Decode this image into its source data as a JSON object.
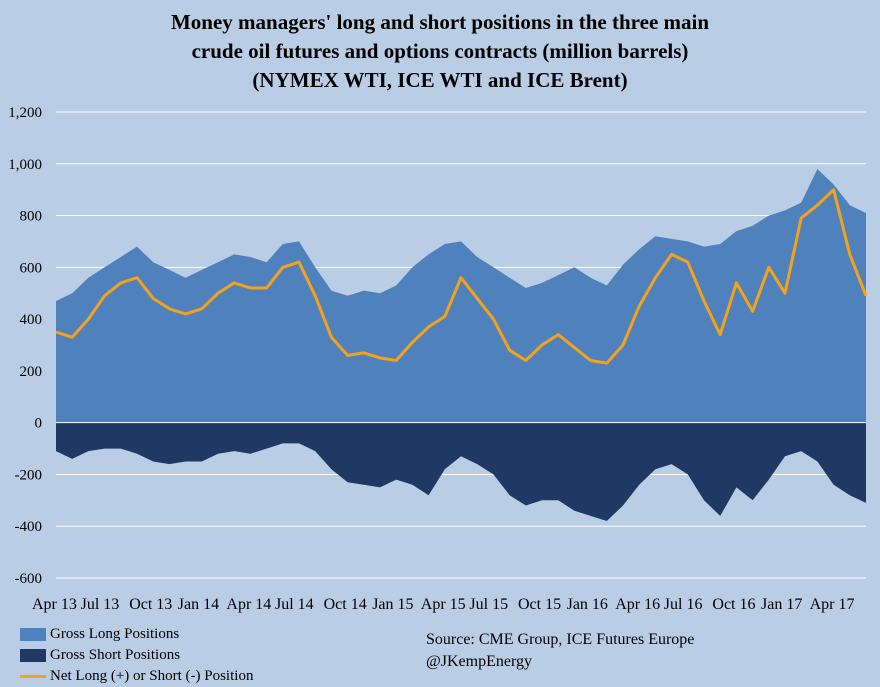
{
  "title": {
    "line1": "Money managers' long and short positions in the three main",
    "line2": "crude oil futures and options contracts (million barrels)",
    "line3": "(NYMEX WTI, ICE WTI and ICE Brent)"
  },
  "legend": {
    "long": "Gross Long Positions",
    "short": "Gross Short Positions",
    "net": "Net Long (+) or Short (-) Position"
  },
  "source": {
    "line1": "Source:  CME Group, ICE Futures Europe",
    "line2": "@JKempEnergy"
  },
  "colors": {
    "background": "#b9cde5",
    "long": "#4f81bd",
    "short": "#1f3864",
    "net": "#f5a21b",
    "grid": "#ffffff"
  },
  "chart_data": {
    "type": "area",
    "grid": true,
    "legend_position": "bottom-left",
    "ylim": [
      -600,
      1200
    ],
    "yticks": [
      -600,
      -400,
      -200,
      0,
      200,
      400,
      600,
      800,
      1000,
      1200
    ],
    "ytick_labels": [
      "-600",
      "-400",
      "-200",
      "0",
      "200",
      "400",
      "600",
      "800",
      "1,000",
      "1,200"
    ],
    "xtick_labels": [
      "Apr 13",
      "Jul 13",
      "Oct 13",
      "Jan 14",
      "Apr 14",
      "Jul 14",
      "Oct 14",
      "Jan 15",
      "Apr 15",
      "Jul 15",
      "Oct 15",
      "Jan 16",
      "Apr 16",
      "Jul 16",
      "Oct 16",
      "Jan 17",
      "Apr 17"
    ],
    "x": [
      "Apr 13",
      "May 13",
      "Jun 13",
      "Jul 13",
      "Aug 13",
      "Sep 13",
      "Oct 13",
      "Nov 13",
      "Dec 13",
      "Jan 14",
      "Feb 14",
      "Mar 14",
      "Apr 14",
      "May 14",
      "Jun 14",
      "Jul 14",
      "Aug 14",
      "Sep 14",
      "Oct 14",
      "Nov 14",
      "Dec 14",
      "Jan 15",
      "Feb 15",
      "Mar 15",
      "Apr 15",
      "May 15",
      "Jun 15",
      "Jul 15",
      "Aug 15",
      "Sep 15",
      "Oct 15",
      "Nov 15",
      "Dec 15",
      "Jan 16",
      "Feb 16",
      "Mar 16",
      "Apr 16",
      "May 16",
      "Jun 16",
      "Jul 16",
      "Aug 16",
      "Sep 16",
      "Oct 16",
      "Nov 16",
      "Dec 16",
      "Jan 17",
      "Feb 17",
      "Mar 17",
      "Apr 17",
      "May 17",
      "Jun 17"
    ],
    "series": [
      {
        "name": "Gross Long Positions",
        "values": [
          470,
          500,
          560,
          600,
          640,
          680,
          620,
          590,
          560,
          590,
          620,
          650,
          640,
          620,
          690,
          700,
          600,
          510,
          490,
          510,
          500,
          530,
          600,
          650,
          690,
          700,
          640,
          600,
          560,
          520,
          540,
          570,
          600,
          560,
          530,
          610,
          670,
          720,
          710,
          700,
          680,
          690,
          740,
          760,
          800,
          820,
          850,
          980,
          920,
          840,
          810
        ]
      },
      {
        "name": "Gross Short Positions",
        "values": [
          -110,
          -140,
          -110,
          -100,
          -100,
          -120,
          -150,
          -160,
          -150,
          -150,
          -120,
          -110,
          -120,
          -100,
          -80,
          -80,
          -110,
          -180,
          -230,
          -240,
          -250,
          -220,
          -240,
          -280,
          -180,
          -130,
          -160,
          -200,
          -280,
          -320,
          -300,
          -300,
          -340,
          -360,
          -380,
          -320,
          -240,
          -180,
          -160,
          -200,
          -300,
          -360,
          -250,
          -300,
          -220,
          -130,
          -110,
          -150,
          -240,
          -280,
          -310
        ]
      },
      {
        "name": "Net Long (+) or Short (-) Position",
        "values": [
          350,
          330,
          400,
          490,
          540,
          560,
          480,
          440,
          420,
          440,
          500,
          540,
          520,
          520,
          600,
          620,
          490,
          330,
          260,
          270,
          250,
          240,
          310,
          370,
          410,
          560,
          480,
          400,
          280,
          240,
          300,
          340,
          290,
          240,
          230,
          300,
          450,
          560,
          650,
          620,
          470,
          340,
          540,
          430,
          600,
          500,
          790,
          840,
          900,
          650,
          490
        ]
      }
    ]
  }
}
